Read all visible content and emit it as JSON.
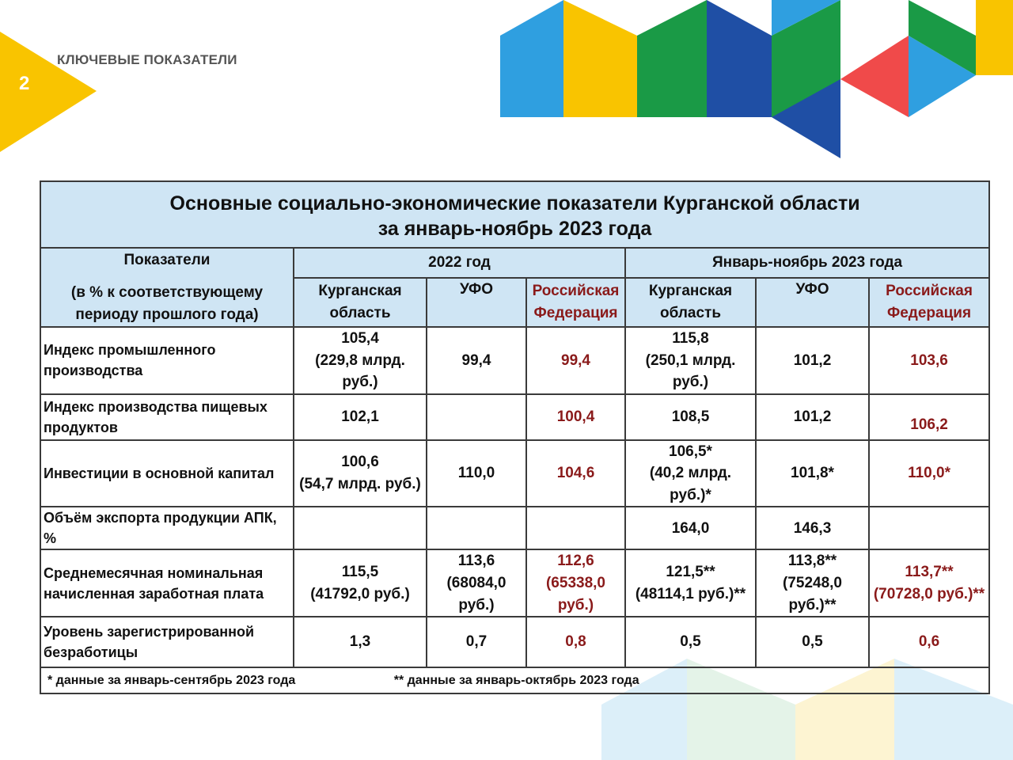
{
  "slide": {
    "number": "2",
    "section_title": "КЛЮЧЕВЫЕ ПОКАЗАТЕЛИ"
  },
  "colors": {
    "header_bg": "#cfe5f4",
    "russia_text": "#8a1a1a",
    "yellow": "#f9c400",
    "blue": "#2f9fe0",
    "dark_blue": "#1f4fa5",
    "green": "#1a9a46",
    "red": "#f04a4a"
  },
  "table": {
    "title_line1": "Основные социально-экономические показатели Курганской области",
    "title_line2": "за январь-ноябрь 2023 года",
    "indicator_header_line1": "Показатели",
    "indicator_header_line2": "(в % к соответствующему периоду прошлого года)",
    "period_2022": "2022 год",
    "period_2023": "Январь-ноябрь 2023 года",
    "col_kurgan": "Курганская область",
    "col_ufo": "УФО",
    "col_rf": "Российская Федерация",
    "rows": [
      {
        "name": "Индекс промышленного производства",
        "k22": "105,4",
        "k22_note": "(229,8 млрд. руб.)",
        "u22": "99,4",
        "r22": "99,4",
        "k23": "115,8",
        "k23_note": "(250,1 млрд. руб.)",
        "u23": "101,2",
        "r23": "103,6"
      },
      {
        "name": "Индекс производства пищевых продуктов",
        "k22": "102,1",
        "u22": "",
        "r22": "100,4",
        "k23": "108,5",
        "u23": "101,2",
        "r23": "106,2"
      },
      {
        "name": "Инвестиции в основной капитал",
        "k22": "100,6",
        "k22_note": "(54,7 млрд. руб.)",
        "u22": "110,0",
        "r22": "104,6",
        "k23": "106,5*",
        "k23_note": "(40,2 млрд. руб.)*",
        "u23": "101,8*",
        "r23": "110,0*"
      },
      {
        "name": "Объём экспорта продукции АПК, %",
        "k22": "",
        "u22": "",
        "r22": "",
        "k23": "164,0",
        "u23": "146,3",
        "r23": ""
      },
      {
        "name": "Среднемесячная номинальная начисленная заработная плата",
        "k22": "115,5",
        "k22_note": "(41792,0 руб.)",
        "u22": "113,6",
        "u22_note": "(68084,0 руб.)",
        "r22": "112,6",
        "r22_note": "(65338,0 руб.)",
        "k23": "121,5**",
        "k23_note": "(48114,1 руб.)**",
        "u23": "113,8**",
        "u23_note": "(75248,0 руб.)**",
        "r23": "113,7**",
        "r23_note": "(70728,0 руб.)**"
      },
      {
        "name": "Уровень зарегистрированной безработицы",
        "k22": "1,3",
        "u22": "0,7",
        "r22": "0,8",
        "k23": "0,5",
        "u23": "0,5",
        "r23": "0,6"
      }
    ],
    "footnote1": "* данные за январь-сентябрь  2023 года",
    "footnote2": "** данные за январь-октябрь  2023 года"
  }
}
